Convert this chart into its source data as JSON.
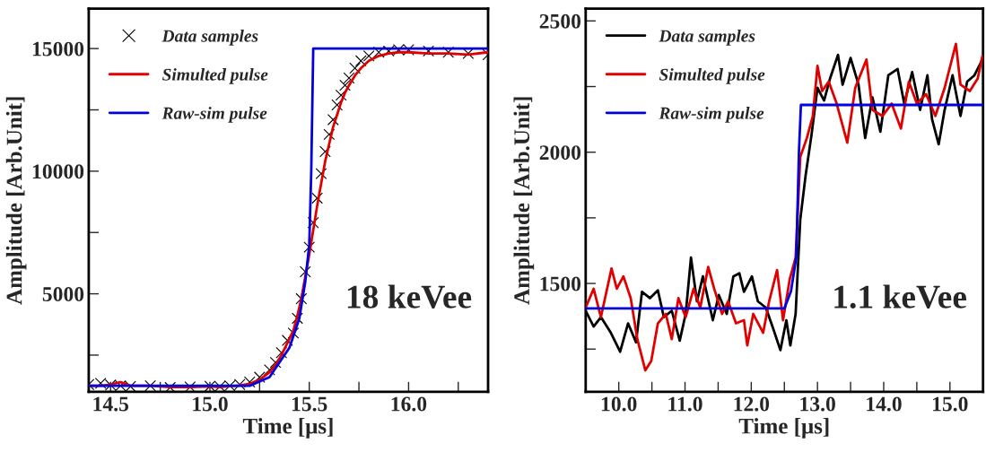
{
  "chart_data": [
    {
      "type": "line",
      "xlabel": "Time [μs]",
      "ylabel": "Amplitude [Arb.Unit]",
      "xlim": [
        14.39,
        16.4
      ],
      "ylim": [
        1000,
        16630
      ],
      "xticks": [
        14.5,
        {
          "value": 15,
          "label": "15.0"
        },
        15.5,
        {
          "value": 16,
          "label": "16.0"
        },
        {
          "value": 14.75,
          "label": null
        },
        {
          "value": 15.25,
          "label": null
        },
        {
          "value": 15.75,
          "label": null
        },
        {
          "value": 16.25,
          "label": null
        }
      ],
      "yticks": [
        5000,
        10000,
        15000,
        {
          "value": 2500,
          "label": null
        },
        {
          "value": 7500,
          "label": null
        },
        {
          "value": 12500,
          "label": null
        }
      ],
      "legend": "top left",
      "annotations": [
        "18 keVee"
      ],
      "series": [
        {
          "type": "scatter",
          "marker": "cross",
          "name": "Data samples",
          "color": "#000000",
          "x": [
            14.39,
            14.45,
            14.5,
            14.55,
            14.6,
            14.7,
            14.8,
            14.9,
            15.0,
            15.05,
            15.1,
            15.15,
            15.2,
            15.25,
            15.3,
            15.33,
            15.36,
            15.39,
            15.42,
            15.44,
            15.46,
            15.48,
            15.5,
            15.52,
            15.54,
            15.56,
            15.58,
            15.6,
            15.62,
            15.64,
            15.66,
            15.68,
            15.7,
            15.73,
            15.76,
            15.8,
            15.85,
            15.9,
            15.95,
            16.0,
            16.1,
            16.2,
            16.3,
            16.4
          ],
          "values": [
            1300,
            1350,
            1280,
            1250,
            1220,
            1250,
            1180,
            1200,
            1230,
            1220,
            1250,
            1300,
            1400,
            1600,
            1900,
            2200,
            2600,
            3100,
            3400,
            4000,
            4800,
            5900,
            6900,
            7900,
            8900,
            9900,
            10800,
            11500,
            12100,
            12700,
            13100,
            13500,
            13800,
            14200,
            14500,
            14700,
            14850,
            14900,
            14950,
            14950,
            14900,
            14850,
            14800,
            14750
          ]
        },
        {
          "name": "Simulted pulse",
          "color": "#e00000",
          "x": [
            14.39,
            14.45,
            14.5,
            14.55,
            14.6,
            14.7,
            14.8,
            14.9,
            15.0,
            15.05,
            15.1,
            15.15,
            15.2,
            15.25,
            15.3,
            15.33,
            15.36,
            15.39,
            15.42,
            15.44,
            15.46,
            15.48,
            15.5,
            15.52,
            15.54,
            15.56,
            15.58,
            15.6,
            15.62,
            15.64,
            15.66,
            15.68,
            15.7,
            15.73,
            15.76,
            15.8,
            15.85,
            15.9,
            15.95,
            16.0,
            16.1,
            16.2,
            16.3,
            16.4
          ],
          "values": [
            1250,
            1250,
            1300,
            1400,
            1250,
            1250,
            1200,
            1200,
            1220,
            1200,
            1230,
            1260,
            1330,
            1500,
            1800,
            2100,
            2500,
            3000,
            3500,
            4100,
            4800,
            5700,
            6600,
            7600,
            8600,
            9500,
            10400,
            11100,
            11800,
            12300,
            12800,
            13200,
            13500,
            13900,
            14200,
            14500,
            14700,
            14800,
            14850,
            14850,
            14800,
            14800,
            14750,
            14850
          ]
        },
        {
          "name": "Raw-sim pulse",
          "color": "#0000e0",
          "x": [
            14.39,
            15.2,
            15.3,
            15.4,
            15.45,
            15.48,
            15.5,
            15.51,
            15.52,
            16.4
          ],
          "values": [
            1250,
            1250,
            1600,
            2800,
            4000,
            5500,
            7000,
            10000,
            15000,
            15000
          ]
        }
      ]
    },
    {
      "type": "line",
      "xlabel": "Time [μs]",
      "ylabel": "Amplitude [Arb.Unit]",
      "xlim": [
        9.5,
        15.5
      ],
      "ylim": [
        1087,
        2547
      ],
      "xticks": [
        {
          "value": 10,
          "label": "10.0"
        },
        {
          "value": 11,
          "label": "11.0"
        },
        {
          "value": 12,
          "label": "12.0"
        },
        {
          "value": 13,
          "label": "13.0"
        },
        {
          "value": 14,
          "label": "14.0"
        },
        {
          "value": 15,
          "label": "15.0"
        },
        {
          "value": 10.5,
          "label": null
        },
        {
          "value": 11.5,
          "label": null
        },
        {
          "value": 12.5,
          "label": null
        },
        {
          "value": 13.5,
          "label": null
        },
        {
          "value": 14.5,
          "label": null
        }
      ],
      "yticks": [
        1500,
        2000,
        2500,
        {
          "value": 1250,
          "label": null
        },
        {
          "value": 1750,
          "label": null
        },
        {
          "value": 2250,
          "label": null
        }
      ],
      "legend": "top left",
      "annotations": [
        "1.1 keVee"
      ],
      "series": [
        {
          "name": "Data samples",
          "color": "#000000",
          "x": [
            9.5,
            9.62,
            9.73,
            9.88,
            10.02,
            10.14,
            10.26,
            10.35,
            10.47,
            10.59,
            10.68,
            10.8,
            10.92,
            11.01,
            11.09,
            11.18,
            11.27,
            11.42,
            11.51,
            11.63,
            11.73,
            11.82,
            11.89,
            12.01,
            12.1,
            12.22,
            12.32,
            12.44,
            12.53,
            12.59,
            12.67,
            12.74,
            12.82,
            12.91,
            13.0,
            13.1,
            13.19,
            13.31,
            13.38,
            13.5,
            13.62,
            13.72,
            13.83,
            13.95,
            14.07,
            14.21,
            14.31,
            14.43,
            14.55,
            14.66,
            14.73,
            14.83,
            14.92,
            15.04,
            15.16,
            15.26,
            15.37,
            15.49
          ],
          "values": [
            1396,
            1336,
            1372,
            1312,
            1240,
            1348,
            1276,
            1468,
            1444,
            1474,
            1372,
            1396,
            1282,
            1384,
            1599,
            1432,
            1527,
            1360,
            1456,
            1384,
            1527,
            1539,
            1468,
            1527,
            1432,
            1408,
            1336,
            1246,
            1360,
            1264,
            1384,
            1743,
            1910,
            2066,
            2245,
            2197,
            2281,
            2371,
            2257,
            2359,
            2257,
            2054,
            2209,
            2078,
            2293,
            2317,
            2185,
            2305,
            2161,
            2293,
            2126,
            2030,
            2161,
            2293,
            2138,
            2269,
            2293,
            2353
          ]
        },
        {
          "name": "Simulted pulse",
          "color": "#e00000",
          "x": [
            9.5,
            9.62,
            9.73,
            9.89,
            9.97,
            10.07,
            10.18,
            10.28,
            10.4,
            10.49,
            10.59,
            10.71,
            10.8,
            10.9,
            11.01,
            11.13,
            11.23,
            11.35,
            11.44,
            11.56,
            11.65,
            11.77,
            11.89,
            11.94,
            12.03,
            12.18,
            12.27,
            12.39,
            12.48,
            12.58,
            12.67,
            12.74,
            12.84,
            12.93,
            13.0,
            13.07,
            13.17,
            13.29,
            13.45,
            13.57,
            13.74,
            13.83,
            13.98,
            14.12,
            14.26,
            14.38,
            14.5,
            14.64,
            14.78,
            14.92,
            15.09,
            15.16,
            15.3,
            15.42,
            15.49
          ],
          "values": [
            1408,
            1480,
            1372,
            1557,
            1480,
            1527,
            1444,
            1288,
            1169,
            1205,
            1348,
            1384,
            1288,
            1444,
            1372,
            1480,
            1408,
            1563,
            1480,
            1384,
            1432,
            1348,
            1360,
            1264,
            1384,
            1312,
            1432,
            1551,
            1360,
            1515,
            1599,
            1982,
            2054,
            2138,
            2329,
            2233,
            2269,
            2185,
            2036,
            2245,
            2353,
            2161,
            2138,
            2185,
            2090,
            2269,
            2185,
            2221,
            2138,
            2245,
            2413,
            2257,
            2233,
            2281,
            2365
          ]
        },
        {
          "name": "Raw-sim pulse",
          "color": "#0000e0",
          "x": [
            9.5,
            12.5,
            12.6,
            12.68,
            12.72,
            12.75,
            15.5
          ],
          "values": [
            1405,
            1405,
            1470,
            1600,
            2000,
            2180,
            2180
          ]
        }
      ]
    }
  ]
}
